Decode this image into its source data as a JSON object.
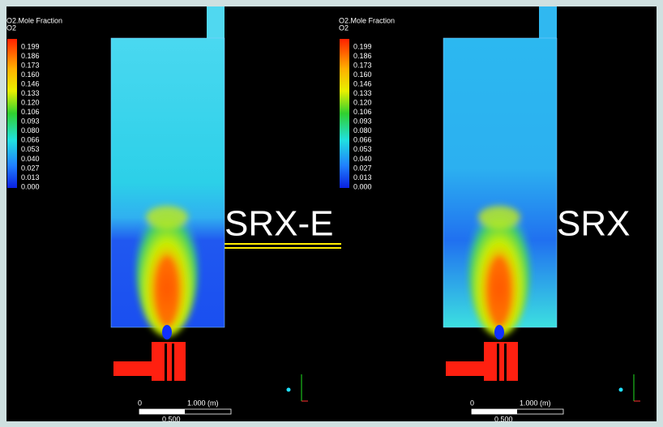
{
  "panels": [
    {
      "legend_title": "O2.Mole Fraction",
      "legend_subtitle": "O2",
      "legend_labels": [
        "0.199",
        "0.186",
        "0.173",
        "0.160",
        "0.146",
        "0.133",
        "0.120",
        "0.106",
        "0.093",
        "0.080",
        "0.066",
        "0.053",
        "0.040",
        "0.027",
        "0.013",
        "0.000"
      ],
      "label": "SRX-E",
      "scale": {
        "start": "0",
        "end": "1.000 (m)",
        "mid": "0.500"
      }
    },
    {
      "legend_title": "O2.Mole Fraction",
      "legend_subtitle": "O2",
      "legend_labels": [
        "0.199",
        "0.186",
        "0.173",
        "0.160",
        "0.146",
        "0.133",
        "0.120",
        "0.106",
        "0.093",
        "0.080",
        "0.066",
        "0.053",
        "0.040",
        "0.027",
        "0.013",
        "0.000"
      ],
      "label": "SRX",
      "scale": {
        "start": "0",
        "end": "1.000 (m)",
        "mid": "0.500"
      }
    }
  ]
}
